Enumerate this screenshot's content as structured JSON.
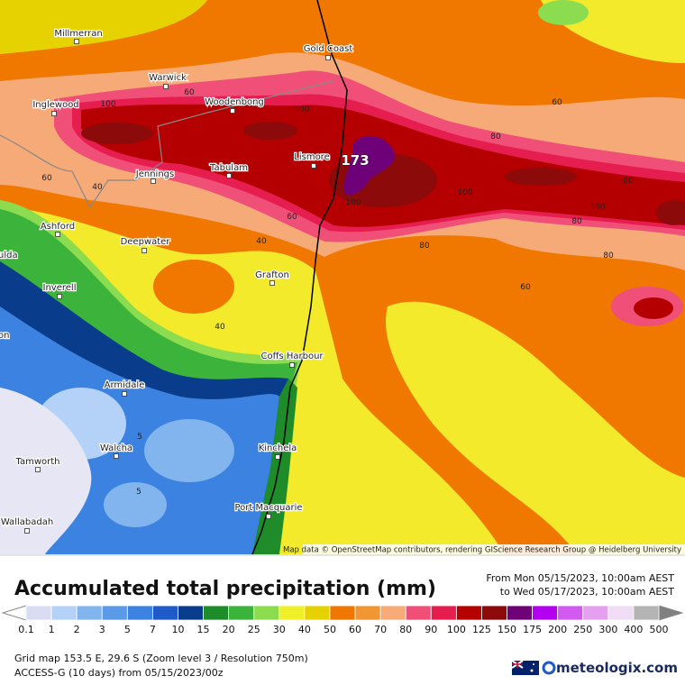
{
  "map": {
    "towns": [
      "Millmerran",
      "Gold Coast",
      "Warwick",
      "Inglewood",
      "Woodenbong",
      "Lismore",
      "Tabulam",
      "Jennings",
      "Ashford",
      "Deepwater",
      "ulda",
      "Grafton",
      "Inverell",
      "on",
      "Coffs Harbour",
      "Armidale",
      "Walcha",
      "Kinchela",
      "Tamworth",
      "Port Macquarie",
      "Wallabadah"
    ],
    "contour_labels": [
      100,
      60,
      100,
      80,
      60,
      60,
      40,
      100,
      100,
      80,
      100,
      80,
      60,
      40,
      80,
      80,
      60,
      40,
      5,
      5
    ],
    "max_label": 173,
    "attribution": "Map data © OpenStreetMap contributors, rendering GIScience Research Group @ Heidelberg University"
  },
  "legend": {
    "title": "Accumulated total precipitation (mm)",
    "period_from": "From Mon 05/15/2023, 10:00am AEST",
    "period_to": "to Wed 05/17/2023, 10:00am AEST",
    "levels": [
      0.1,
      1,
      2,
      3,
      5,
      7,
      10,
      15,
      20,
      25,
      30,
      40,
      50,
      60,
      70,
      80,
      90,
      100,
      125,
      150,
      175,
      200,
      250,
      300,
      400,
      500
    ],
    "colors": [
      "#d9dcf2",
      "#b4d2f7",
      "#82b4ee",
      "#5a9ae6",
      "#3c82e0",
      "#1e5ac8",
      "#0a3c8c",
      "#1e8c28",
      "#3cb43c",
      "#8cdc50",
      "#f0f028",
      "#e6d200",
      "#f07800",
      "#f09632",
      "#f5aa78",
      "#f05078",
      "#e61e50",
      "#b40000",
      "#8c0a0a",
      "#6e0078",
      "#b400f0",
      "#d25af0",
      "#e6a0f0",
      "#f0dcf5",
      "#b4b4b4"
    ]
  },
  "footer": {
    "grid": "Grid map 153.5 E, 29.6 S (Zoom level 3 / Resolution 750m)",
    "model": "ACCESS-G (10 days) from 05/15/2023/00z",
    "logo": "meteologix.com"
  }
}
